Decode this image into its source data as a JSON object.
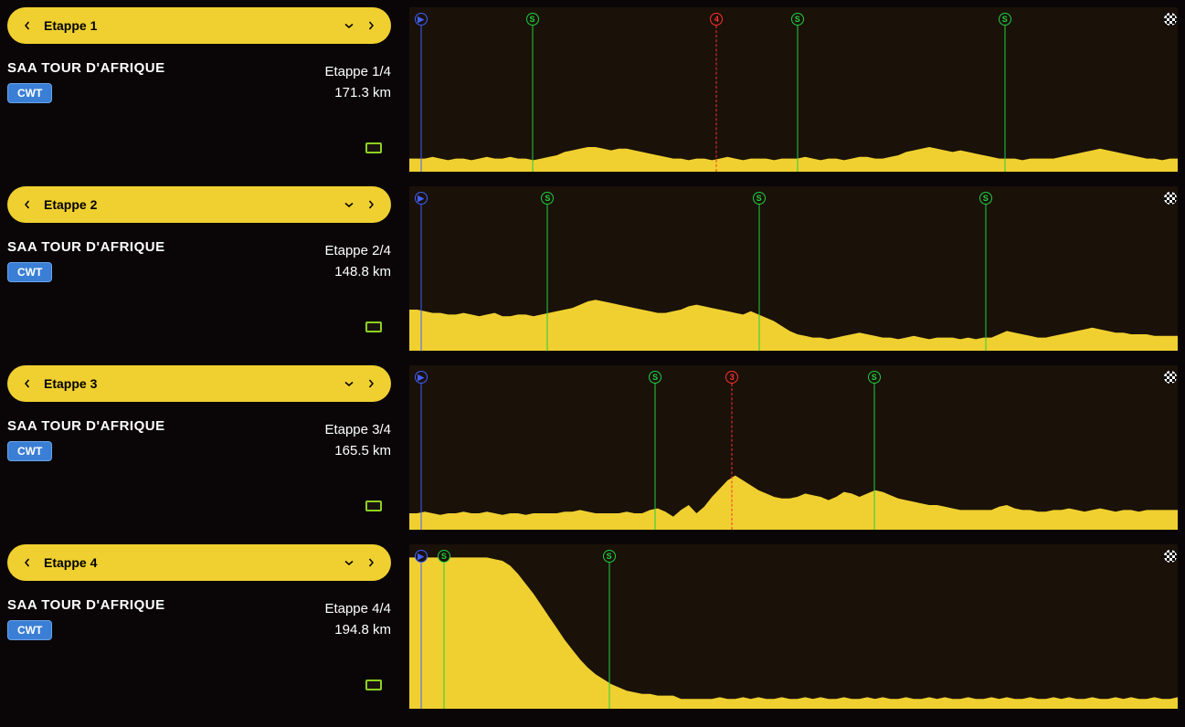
{
  "tour_name": "SAA TOUR D'AFRIQUE",
  "badge_label": "CWT",
  "colors": {
    "yellow": "#f0d030",
    "profile_fill": "#f0d030",
    "bg": "#0a0608",
    "panel_bg": "#1a1108",
    "sprint": "#20d040",
    "climb": "#ff3030",
    "start": "#4060ff",
    "badge_bg": "#3a7fd5"
  },
  "stages": [
    {
      "selector_label": "Etappe 1",
      "stage_number": "Etappe 1/4",
      "distance": "171.3 km",
      "markers": [
        {
          "type": "start",
          "pos_pct": 1.5,
          "label": "▶"
        },
        {
          "type": "sprint",
          "pos_pct": 16,
          "label": "S"
        },
        {
          "type": "climb",
          "pos_pct": 40,
          "label": "4"
        },
        {
          "type": "sprint",
          "pos_pct": 50.5,
          "label": "S"
        },
        {
          "type": "sprint",
          "pos_pct": 77.5,
          "label": "S"
        },
        {
          "type": "finish",
          "pos_pct": 99,
          "label": ""
        }
      ],
      "elevation": [
        0.08,
        0.08,
        0.08,
        0.09,
        0.08,
        0.07,
        0.08,
        0.08,
        0.07,
        0.08,
        0.09,
        0.08,
        0.08,
        0.09,
        0.08,
        0.08,
        0.07,
        0.08,
        0.09,
        0.1,
        0.12,
        0.13,
        0.14,
        0.15,
        0.15,
        0.14,
        0.13,
        0.14,
        0.14,
        0.13,
        0.12,
        0.11,
        0.1,
        0.09,
        0.08,
        0.08,
        0.07,
        0.08,
        0.08,
        0.07,
        0.08,
        0.09,
        0.08,
        0.07,
        0.08,
        0.08,
        0.08,
        0.07,
        0.08,
        0.08,
        0.08,
        0.09,
        0.08,
        0.07,
        0.08,
        0.08,
        0.07,
        0.08,
        0.09,
        0.09,
        0.08,
        0.08,
        0.09,
        0.1,
        0.12,
        0.13,
        0.14,
        0.15,
        0.14,
        0.13,
        0.12,
        0.13,
        0.12,
        0.11,
        0.1,
        0.09,
        0.08,
        0.08,
        0.08,
        0.07,
        0.08,
        0.08,
        0.08,
        0.08,
        0.09,
        0.1,
        0.11,
        0.12,
        0.13,
        0.14,
        0.13,
        0.12,
        0.11,
        0.1,
        0.09,
        0.08,
        0.08,
        0.07,
        0.08,
        0.08
      ]
    },
    {
      "selector_label": "Etappe 2",
      "stage_number": "Etappe 2/4",
      "distance": "148.8 km",
      "markers": [
        {
          "type": "start",
          "pos_pct": 1.5,
          "label": "▶"
        },
        {
          "type": "sprint",
          "pos_pct": 18,
          "label": "S"
        },
        {
          "type": "sprint",
          "pos_pct": 45.5,
          "label": "S"
        },
        {
          "type": "sprint",
          "pos_pct": 75,
          "label": "S"
        },
        {
          "type": "finish",
          "pos_pct": 99,
          "label": ""
        }
      ],
      "elevation": [
        0.25,
        0.25,
        0.24,
        0.23,
        0.23,
        0.22,
        0.22,
        0.23,
        0.22,
        0.21,
        0.22,
        0.23,
        0.21,
        0.21,
        0.22,
        0.22,
        0.21,
        0.22,
        0.23,
        0.24,
        0.25,
        0.26,
        0.28,
        0.3,
        0.31,
        0.3,
        0.29,
        0.28,
        0.27,
        0.26,
        0.25,
        0.24,
        0.23,
        0.23,
        0.24,
        0.25,
        0.27,
        0.28,
        0.27,
        0.26,
        0.25,
        0.24,
        0.23,
        0.22,
        0.24,
        0.22,
        0.2,
        0.18,
        0.15,
        0.12,
        0.1,
        0.09,
        0.08,
        0.08,
        0.07,
        0.08,
        0.09,
        0.1,
        0.11,
        0.1,
        0.09,
        0.08,
        0.08,
        0.07,
        0.08,
        0.09,
        0.08,
        0.07,
        0.08,
        0.08,
        0.08,
        0.07,
        0.08,
        0.07,
        0.08,
        0.08,
        0.1,
        0.12,
        0.11,
        0.1,
        0.09,
        0.08,
        0.08,
        0.09,
        0.1,
        0.11,
        0.12,
        0.13,
        0.14,
        0.13,
        0.12,
        0.11,
        0.11,
        0.1,
        0.1,
        0.1,
        0.09,
        0.09,
        0.09,
        0.09
      ]
    },
    {
      "selector_label": "Etappe 3",
      "stage_number": "Etappe 3/4",
      "distance": "165.5 km",
      "markers": [
        {
          "type": "start",
          "pos_pct": 1.5,
          "label": "▶"
        },
        {
          "type": "sprint",
          "pos_pct": 32,
          "label": "S"
        },
        {
          "type": "climb",
          "pos_pct": 42,
          "label": "3"
        },
        {
          "type": "sprint",
          "pos_pct": 60.5,
          "label": "S"
        },
        {
          "type": "finish",
          "pos_pct": 99,
          "label": ""
        }
      ],
      "elevation": [
        0.1,
        0.1,
        0.11,
        0.1,
        0.09,
        0.1,
        0.1,
        0.11,
        0.1,
        0.1,
        0.11,
        0.1,
        0.09,
        0.1,
        0.1,
        0.09,
        0.1,
        0.1,
        0.1,
        0.1,
        0.11,
        0.11,
        0.12,
        0.11,
        0.1,
        0.1,
        0.1,
        0.1,
        0.11,
        0.1,
        0.1,
        0.12,
        0.13,
        0.11,
        0.08,
        0.12,
        0.15,
        0.1,
        0.14,
        0.2,
        0.25,
        0.3,
        0.33,
        0.3,
        0.27,
        0.24,
        0.22,
        0.2,
        0.19,
        0.19,
        0.2,
        0.22,
        0.21,
        0.2,
        0.18,
        0.2,
        0.23,
        0.22,
        0.2,
        0.22,
        0.24,
        0.23,
        0.21,
        0.19,
        0.18,
        0.17,
        0.16,
        0.15,
        0.15,
        0.14,
        0.13,
        0.12,
        0.12,
        0.12,
        0.12,
        0.12,
        0.14,
        0.15,
        0.13,
        0.12,
        0.12,
        0.11,
        0.11,
        0.12,
        0.12,
        0.13,
        0.12,
        0.11,
        0.12,
        0.13,
        0.12,
        0.11,
        0.12,
        0.12,
        0.11,
        0.12,
        0.12,
        0.12,
        0.12,
        0.12
      ]
    },
    {
      "selector_label": "Etappe 4",
      "stage_number": "Etappe 4/4",
      "distance": "194.8 km",
      "markers": [
        {
          "type": "start",
          "pos_pct": 1.5,
          "label": "▶"
        },
        {
          "type": "sprint",
          "pos_pct": 4.5,
          "label": "S"
        },
        {
          "type": "sprint",
          "pos_pct": 26,
          "label": "S"
        },
        {
          "type": "finish",
          "pos_pct": 99,
          "label": ""
        }
      ],
      "elevation": [
        0.92,
        0.92,
        0.92,
        0.92,
        0.92,
        0.92,
        0.92,
        0.92,
        0.92,
        0.92,
        0.92,
        0.91,
        0.9,
        0.87,
        0.82,
        0.76,
        0.7,
        0.63,
        0.56,
        0.49,
        0.42,
        0.36,
        0.3,
        0.25,
        0.21,
        0.18,
        0.15,
        0.13,
        0.11,
        0.1,
        0.09,
        0.09,
        0.08,
        0.08,
        0.08,
        0.06,
        0.06,
        0.06,
        0.06,
        0.06,
        0.07,
        0.06,
        0.06,
        0.07,
        0.06,
        0.07,
        0.06,
        0.06,
        0.07,
        0.06,
        0.06,
        0.07,
        0.06,
        0.07,
        0.06,
        0.06,
        0.07,
        0.06,
        0.06,
        0.07,
        0.06,
        0.07,
        0.06,
        0.06,
        0.07,
        0.06,
        0.06,
        0.07,
        0.06,
        0.07,
        0.06,
        0.06,
        0.07,
        0.06,
        0.06,
        0.07,
        0.06,
        0.07,
        0.06,
        0.06,
        0.07,
        0.06,
        0.06,
        0.07,
        0.06,
        0.07,
        0.06,
        0.06,
        0.07,
        0.06,
        0.06,
        0.07,
        0.06,
        0.07,
        0.06,
        0.06,
        0.07,
        0.06,
        0.06,
        0.07
      ]
    }
  ]
}
